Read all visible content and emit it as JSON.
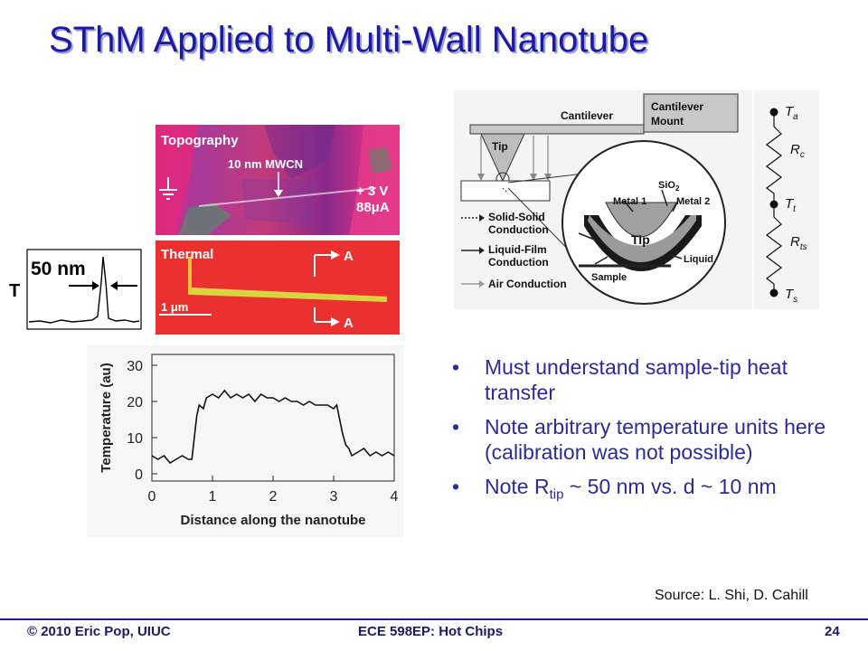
{
  "slide": {
    "title": "SThM Applied to Multi-Wall Nanotube",
    "source": "Source: L. Shi, D. Cahill",
    "footer": {
      "left": "© 2010 Eric Pop, UIUC",
      "center": "ECE 598EP: Hot Chips",
      "page": "24"
    }
  },
  "bullets": [
    {
      "text": "Must understand sample-tip heat transfer"
    },
    {
      "text": "Note arbitrary temperature units here (calibration was not possible)"
    },
    {
      "pre": "Note R",
      "sub": "tip",
      "post": " ~ 50 nm vs. d ~ 10 nm"
    }
  ],
  "topography": {
    "label": "Topography",
    "tube_label": "10 nm MWCN",
    "voltage": "+ 3 V",
    "current": "88μA"
  },
  "thermal": {
    "label": "Thermal",
    "section_top": "A",
    "section_bottom": "A",
    "scale": "1 μm"
  },
  "inset": {
    "axis_label": "T",
    "width_label": "50 nm"
  },
  "schematic": {
    "cantilever": "Cantilever",
    "mount_line1": "Cantilever",
    "mount_line2": "Mount",
    "tip": "Tip",
    "zoom_tip": "Tip",
    "sio2": "SiO",
    "sio2_sub": "2",
    "metal1": "Metal 1",
    "metal2": "Metal 2",
    "liquid": "Liquid",
    "sample": "Sample",
    "legend": [
      {
        "line1": "Solid-Solid",
        "line2": "Conduction",
        "style": "dotted"
      },
      {
        "line1": "Liquid-Film",
        "line2": "Conduction",
        "style": "solid"
      },
      {
        "line1": "Air Conduction",
        "line2": "",
        "style": "gray"
      }
    ]
  },
  "circuit": {
    "nodes": [
      {
        "name": "T",
        "sub": "a"
      },
      {
        "name": "T",
        "sub": "t"
      },
      {
        "name": "T",
        "sub": "s"
      }
    ],
    "resistors": [
      {
        "name": "R",
        "sub": "c"
      },
      {
        "name": "R",
        "sub": "ts"
      }
    ]
  },
  "chart_data": {
    "type": "line",
    "title": "",
    "xlabel": "Distance along the nanotube",
    "ylabel": "Temperature (au)",
    "xlim": [
      0,
      4
    ],
    "ylim": [
      -2,
      33
    ],
    "xticks": [
      0,
      1,
      2,
      3,
      4
    ],
    "yticks": [
      0,
      10,
      20,
      30
    ],
    "grid": false,
    "series": [
      {
        "x": [
          0,
          0.1,
          0.2,
          0.3,
          0.4,
          0.5,
          0.6,
          0.66,
          0.7,
          0.74,
          0.78,
          0.85,
          0.9,
          1.0,
          1.1,
          1.2,
          1.3,
          1.4,
          1.5,
          1.6,
          1.7,
          1.8,
          1.9,
          2.0,
          2.1,
          2.2,
          2.3,
          2.4,
          2.5,
          2.6,
          2.7,
          2.8,
          2.9,
          3.0,
          3.05,
          3.1,
          3.15,
          3.2,
          3.25,
          3.3,
          3.4,
          3.5,
          3.6,
          3.7,
          3.8,
          3.9,
          4.0
        ],
        "y": [
          5,
          4,
          5,
          3,
          4,
          5,
          4,
          4,
          10,
          16,
          19,
          18,
          21,
          22,
          21,
          23,
          21,
          22,
          21,
          22,
          20,
          22,
          21,
          21,
          20,
          21,
          20,
          20,
          19,
          20,
          19,
          19,
          19,
          18,
          19,
          15,
          11,
          8,
          7,
          5,
          6,
          7,
          5,
          6,
          5,
          6,
          5
        ]
      }
    ]
  }
}
